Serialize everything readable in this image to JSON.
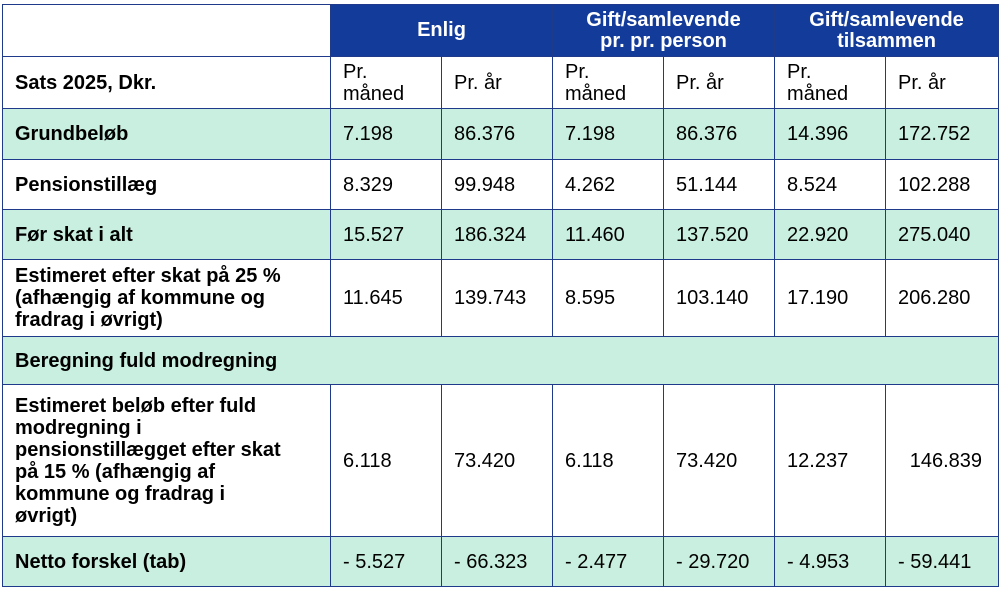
{
  "headers": {
    "group1": "Enlig",
    "group2_line1": "Gift/samlevende",
    "group2_line2": "pr. pr. person",
    "group3_line1": "Gift/samlevende",
    "group3_line2": "tilsammen"
  },
  "subheader": {
    "label": "Sats 2025, Dkr.",
    "cols": [
      "Pr. måned",
      "Pr. år",
      "Pr. måned",
      "Pr. år",
      "Pr. måned",
      "Pr. år"
    ],
    "col_line1": "Pr.",
    "col_line2": "måned",
    "col_year": "Pr. år"
  },
  "rows": [
    {
      "label": "Grundbeløb",
      "values": [
        "7.198",
        "86.376",
        "7.198",
        "86.376",
        "14.396",
        "172.752"
      ]
    },
    {
      "label": "Pensionstillæg",
      "values": [
        "8.329",
        "99.948",
        "4.262",
        "51.144",
        "8.524",
        "102.288"
      ]
    },
    {
      "label": "Før skat i alt",
      "values": [
        "15.527",
        "186.324",
        "11.460",
        "137.520",
        "22.920",
        "275.040"
      ]
    },
    {
      "label_lines": [
        "Estimeret efter skat på 25 %",
        "(afhængig af kommune og",
        "fradrag i øvrigt)"
      ],
      "values": [
        "11.645",
        "139.743",
        "8.595",
        "103.140",
        "17.190",
        "206.280"
      ]
    },
    {
      "label": "Beregning fuld modregning"
    },
    {
      "label_lines": [
        "Estimeret beløb efter fuld",
        "modregning i",
        "pensionstillægget efter skat",
        "på 15 % (afhængig af",
        "kommune og fradrag i",
        "øvrigt)"
      ],
      "values": [
        "6.118",
        "73.420",
        "6.118",
        "73.420",
        "12.237",
        "146.839"
      ]
    },
    {
      "label": "Netto forskel (tab)",
      "values": [
        "- 5.527",
        "- 66.323",
        "- 2.477",
        "- 29.720",
        "- 4.953",
        "- 59.441"
      ]
    }
  ],
  "colors": {
    "header_bg": "#133b9a",
    "border": "#1f3a8a",
    "shade": "#c8efdf"
  }
}
